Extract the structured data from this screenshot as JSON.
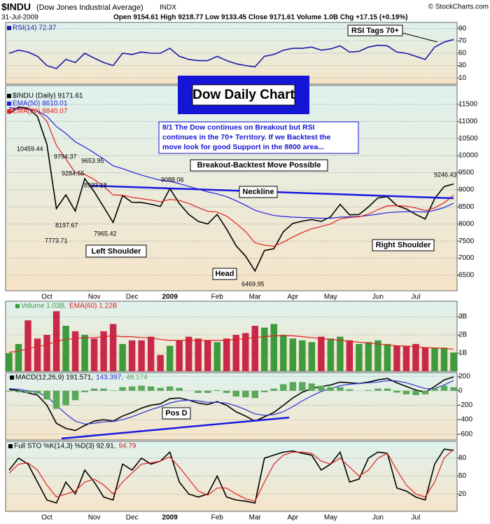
{
  "header": {
    "symbol": "$INDU",
    "name": "(Dow Jones Industrial Average)",
    "exchange": "INDX",
    "date": "31-Jul-2009",
    "quote": "Open 9154.61   High 9218.77   Low 9133.45   Close 9171.61   Volume 1.0B   Chg +17.15 (+0.19%)",
    "credit": "© StockCharts.com"
  },
  "chart_data": [
    {
      "type": "line",
      "ylim": [
        0,
        100
      ],
      "yticks": [
        90,
        70,
        50,
        30,
        10
      ],
      "grid": true,
      "annotations": [
        "RSI Tags 70+"
      ],
      "series": [
        {
          "name": "RSI(14) 72.37",
          "color": "#1a1aa6",
          "values": [
            50,
            55,
            52,
            45,
            30,
            25,
            40,
            35,
            50,
            42,
            35,
            30,
            50,
            48,
            52,
            50,
            50,
            58,
            45,
            40,
            38,
            38,
            45,
            38,
            33,
            30,
            28,
            45,
            48,
            55,
            58,
            58,
            60,
            55,
            57,
            62,
            52,
            53,
            60,
            63,
            62,
            52,
            50,
            45,
            40,
            60,
            68,
            72.37
          ]
        }
      ]
    },
    {
      "type": "line",
      "ylim": [
        6050,
        12050
      ],
      "yticks": [
        11500,
        11000,
        10500,
        10000,
        9500,
        9000,
        8500,
        8000,
        7500,
        7000,
        6500
      ],
      "grid": true,
      "categories": [
        null,
        null,
        null,
        null,
        "Oct",
        null,
        null,
        null,
        null,
        "Nov",
        null,
        null,
        null,
        "Dec",
        null,
        null,
        null,
        "2009",
        null,
        null,
        null,
        null,
        "Feb",
        null,
        null,
        null,
        "Mar",
        null,
        null,
        null,
        "Apr",
        null,
        null,
        null,
        "May",
        null,
        null,
        null,
        null,
        "Jun",
        null,
        null,
        null,
        "Jul",
        null,
        null,
        null,
        null
      ],
      "annotations": [
        "Dow Daily Chart",
        "8/1  The Dow continues on Breakout but RSI",
        "continues in the 70+ Territory.  If we Backtest the",
        "move look for good Support in the 8800 area...",
        "Breakout-Backtest Move Possible",
        "Neckline",
        "Left Shoulder",
        "Head",
        "Right Shoulder",
        "10459.44",
        "9794.37",
        "9653.95",
        "9284.55",
        "8933.18",
        "9088.06",
        "8197.67",
        "7965.42",
        "7773.71",
        "6469.95",
        "9246.43"
      ],
      "series": [
        {
          "name": "$INDU (Daily) 9171.61",
          "color": "#000000",
          "values": [
            11220,
            11421,
            11388,
            11143,
            10325,
            8451,
            8852,
            8378,
            9325,
            8943,
            8497,
            8046,
            8829,
            8635,
            8629,
            8579,
            8515,
            9034,
            8599,
            8281,
            8077,
            8001,
            8280,
            7850,
            7366,
            7063,
            6627,
            7224,
            7279,
            7776,
            8018,
            8083,
            8131,
            8076,
            8212,
            8575,
            8268,
            8277,
            8500,
            8764,
            8799,
            8539,
            8438,
            8280,
            8146,
            8743,
            9093,
            9171
          ]
        },
        {
          "name": "EMA(50) 8610.01",
          "color": "#2020e0",
          "values": [
            11400,
            11380,
            11350,
            11300,
            11150,
            10850,
            10650,
            10400,
            10250,
            10080,
            9900,
            9700,
            9620,
            9520,
            9430,
            9350,
            9280,
            9250,
            9180,
            9100,
            9020,
            8940,
            8880,
            8800,
            8680,
            8550,
            8400,
            8320,
            8250,
            8220,
            8200,
            8190,
            8180,
            8170,
            8170,
            8200,
            8210,
            8220,
            8250,
            8290,
            8330,
            8350,
            8360,
            8360,
            8350,
            8400,
            8480,
            8610
          ]
        },
        {
          "name": "EMA(20) 8840.07",
          "color": "#e02020",
          "values": [
            11350,
            11360,
            11370,
            11300,
            11000,
            10300,
            9900,
            9500,
            9450,
            9300,
            9100,
            8850,
            8840,
            8780,
            8740,
            8700,
            8650,
            8720,
            8690,
            8600,
            8480,
            8370,
            8350,
            8230,
            8020,
            7780,
            7450,
            7380,
            7350,
            7470,
            7620,
            7750,
            7860,
            7930,
            8000,
            8150,
            8190,
            8210,
            8290,
            8420,
            8530,
            8540,
            8520,
            8470,
            8390,
            8470,
            8620,
            8840
          ]
        }
      ]
    },
    {
      "type": "bar",
      "ylim": [
        0,
        3.85
      ],
      "yticks": [
        {
          "value": 3,
          "label": "3B"
        },
        {
          "value": 2,
          "label": "2B"
        },
        {
          "value": 1,
          "label": "1B"
        }
      ],
      "grid": true,
      "series": [
        {
          "name": "Volume 1.03B,",
          "type": "bar",
          "color": "#3d9a3d",
          "down_color": "#c8284a",
          "values": [
            1.0,
            1.5,
            2.8,
            1.8,
            2.0,
            3.3,
            2.5,
            2.2,
            2.0,
            1.8,
            2.2,
            2.6,
            1.5,
            1.7,
            1.7,
            1.9,
            0.9,
            1.4,
            1.7,
            1.9,
            1.8,
            1.7,
            1.6,
            1.8,
            2.0,
            2.1,
            2.5,
            2.4,
            2.6,
            2.0,
            1.8,
            1.7,
            1.6,
            1.9,
            1.8,
            1.9,
            1.7,
            1.5,
            1.6,
            1.7,
            1.5,
            1.4,
            1.4,
            1.5,
            1.3,
            1.3,
            1.3,
            1.03
          ]
        },
        {
          "name": "EMA(60) 1.22B",
          "type": "line",
          "color": "#e02020",
          "values": [
            1.05,
            1.1,
            1.25,
            1.35,
            1.45,
            1.65,
            1.75,
            1.8,
            1.85,
            1.85,
            1.9,
            1.95,
            1.9,
            1.9,
            1.85,
            1.85,
            1.75,
            1.7,
            1.7,
            1.7,
            1.7,
            1.7,
            1.7,
            1.7,
            1.75,
            1.8,
            1.85,
            1.9,
            1.95,
            1.95,
            1.95,
            1.9,
            1.85,
            1.8,
            1.75,
            1.7,
            1.65,
            1.6,
            1.55,
            1.5,
            1.45,
            1.4,
            1.38,
            1.35,
            1.3,
            1.28,
            1.25,
            1.22
          ]
        }
      ]
    },
    {
      "type": "line",
      "ylim": [
        -680,
        250
      ],
      "yticks": [
        200,
        0,
        -200,
        -400,
        -600
      ],
      "grid": true,
      "annotations": [
        "Pos D"
      ],
      "series": [
        {
          "name": "MACD(12,26,9) 191.571,",
          "type": "line",
          "color": "#000000",
          "values": [
            20,
            0,
            -30,
            -60,
            -200,
            -450,
            -520,
            -550,
            -480,
            -420,
            -400,
            -420,
            -350,
            -300,
            -240,
            -200,
            -180,
            -110,
            -100,
            -130,
            -170,
            -190,
            -150,
            -200,
            -290,
            -350,
            -420,
            -360,
            -300,
            -200,
            -100,
            -20,
            30,
            60,
            80,
            120,
            110,
            100,
            120,
            150,
            170,
            110,
            60,
            10,
            -20,
            60,
            150,
            191.571
          ]
        },
        {
          "name": "143.397,",
          "type": "line",
          "color": "#3030d0",
          "values": [
            30,
            20,
            0,
            -20,
            -80,
            -200,
            -320,
            -420,
            -460,
            -450,
            -430,
            -425,
            -400,
            -360,
            -310,
            -260,
            -220,
            -170,
            -140,
            -130,
            -140,
            -160,
            -160,
            -170,
            -210,
            -260,
            -320,
            -340,
            -330,
            -290,
            -220,
            -140,
            -70,
            -10,
            30,
            70,
            90,
            100,
            110,
            120,
            140,
            135,
            110,
            70,
            30,
            30,
            80,
            143.397
          ]
        },
        {
          "name": "48.174",
          "type": "bar",
          "color": "#5aa85a",
          "values": [
            -10,
            -20,
            -30,
            -40,
            -120,
            -250,
            -200,
            -130,
            -20,
            30,
            30,
            5,
            50,
            60,
            70,
            60,
            40,
            60,
            40,
            0,
            -30,
            -30,
            10,
            -30,
            -80,
            -90,
            -100,
            -20,
            30,
            90,
            120,
            120,
            100,
            70,
            50,
            50,
            20,
            0,
            10,
            30,
            30,
            -25,
            -50,
            -60,
            -50,
            30,
            70,
            48.174
          ]
        }
      ]
    },
    {
      "type": "line",
      "ylim": [
        -9,
        108
      ],
      "yticks": [
        80,
        50,
        20
      ],
      "grid": true,
      "categories": [
        null,
        null,
        null,
        null,
        "Oct",
        null,
        null,
        null,
        null,
        "Nov",
        null,
        null,
        null,
        "Dec",
        null,
        null,
        null,
        "2009",
        null,
        null,
        null,
        null,
        "Feb",
        null,
        null,
        null,
        "Mar",
        null,
        null,
        null,
        "Apr",
        null,
        null,
        null,
        "May",
        null,
        null,
        null,
        null,
        "Jun",
        null,
        null,
        null,
        "Jul",
        null,
        null,
        null,
        null
      ],
      "series": [
        {
          "name": "Full STO %K(14,3) %D(3) 92.91,",
          "color": "#000000",
          "values": [
            60,
            80,
            70,
            40,
            10,
            5,
            40,
            20,
            60,
            40,
            15,
            10,
            70,
            60,
            80,
            70,
            75,
            90,
            40,
            20,
            15,
            20,
            50,
            15,
            10,
            8,
            5,
            80,
            85,
            90,
            92,
            88,
            85,
            60,
            70,
            90,
            40,
            45,
            80,
            90,
            88,
            30,
            25,
            15,
            10,
            70,
            95,
            92.91
          ]
        },
        {
          "name": "94.79",
          "color": "#e02020",
          "values": [
            55,
            70,
            72,
            60,
            35,
            15,
            20,
            25,
            40,
            45,
            35,
            20,
            40,
            55,
            70,
            72,
            75,
            82,
            65,
            45,
            25,
            18,
            30,
            30,
            20,
            12,
            8,
            40,
            70,
            85,
            90,
            90,
            88,
            75,
            70,
            80,
            65,
            50,
            60,
            80,
            88,
            60,
            35,
            20,
            15,
            40,
            80,
            94.79
          ]
        }
      ]
    }
  ]
}
